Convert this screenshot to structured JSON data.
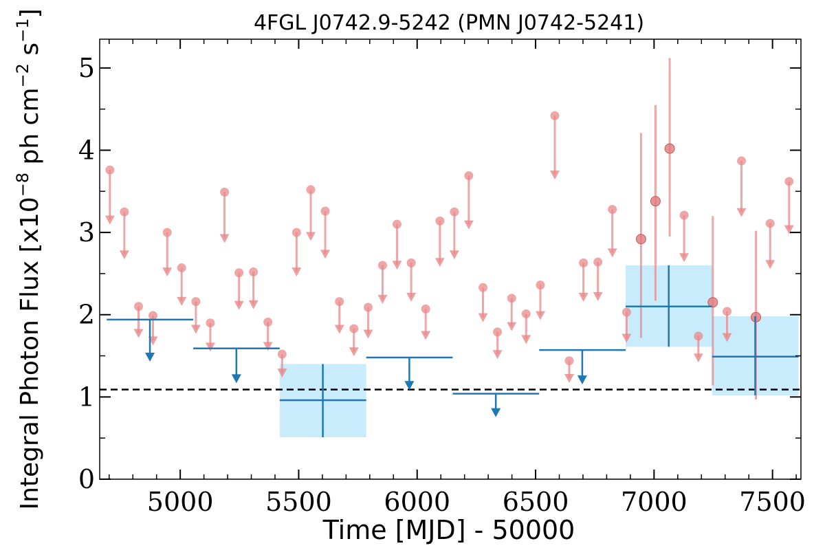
{
  "chart_data": {
    "type": "scatter",
    "title": "4FGL J0742.9-5242 (PMN J0742-5241)",
    "xlabel": "Time [MJD] - 50000",
    "ylabel_main": "Integral Photon Flux [x10",
    "ylabel_exp1": "−8",
    "ylabel_mid": " ph cm",
    "ylabel_exp2": "−2",
    "ylabel_s": " s",
    "ylabel_exp3": "−1",
    "ylabel_end": "]",
    "xlim": [
      4660,
      7620
    ],
    "ylim": [
      0,
      5.35
    ],
    "x_ticks": [
      "5000",
      "5500",
      "6000",
      "6500",
      "7000",
      "7500"
    ],
    "y_ticks": [
      "0",
      "1",
      "2",
      "3",
      "4",
      "5"
    ],
    "reference_line": {
      "y": 1.09,
      "style": "dashed",
      "color": "#000000"
    },
    "colors": {
      "fine": "#e8888a",
      "coarse": "#1f77b4",
      "coarse_band": "#c9ecfc"
    },
    "fine_bins": {
      "bin_width_days": 30,
      "upper_limits": [
        {
          "x": 4703,
          "y": 3.76
        },
        {
          "x": 4764,
          "y": 3.25
        },
        {
          "x": 4824,
          "y": 2.1
        },
        {
          "x": 4885,
          "y": 1.99
        },
        {
          "x": 4945,
          "y": 3.0
        },
        {
          "x": 5006,
          "y": 2.57
        },
        {
          "x": 5066,
          "y": 2.16
        },
        {
          "x": 5127,
          "y": 1.9
        },
        {
          "x": 5187,
          "y": 3.49
        },
        {
          "x": 5248,
          "y": 2.51
        },
        {
          "x": 5309,
          "y": 2.52
        },
        {
          "x": 5370,
          "y": 1.91
        },
        {
          "x": 5430,
          "y": 1.52
        },
        {
          "x": 5491,
          "y": 3.0
        },
        {
          "x": 5551,
          "y": 3.52
        },
        {
          "x": 5612,
          "y": 3.26
        },
        {
          "x": 5672,
          "y": 2.16
        },
        {
          "x": 5733,
          "y": 1.83
        },
        {
          "x": 5793,
          "y": 2.09
        },
        {
          "x": 5854,
          "y": 2.6
        },
        {
          "x": 5915,
          "y": 3.1
        },
        {
          "x": 5975,
          "y": 2.63
        },
        {
          "x": 6036,
          "y": 2.07
        },
        {
          "x": 6096,
          "y": 3.14
        },
        {
          "x": 6157,
          "y": 3.25
        },
        {
          "x": 6218,
          "y": 3.69
        },
        {
          "x": 6278,
          "y": 2.33
        },
        {
          "x": 6339,
          "y": 1.79
        },
        {
          "x": 6399,
          "y": 2.2
        },
        {
          "x": 6460,
          "y": 2.01
        },
        {
          "x": 6520,
          "y": 2.36
        },
        {
          "x": 6581,
          "y": 4.42
        },
        {
          "x": 6642,
          "y": 1.44
        },
        {
          "x": 6702,
          "y": 2.63
        },
        {
          "x": 6763,
          "y": 2.64
        },
        {
          "x": 6824,
          "y": 3.28
        },
        {
          "x": 6884,
          "y": 2.03
        },
        {
          "x": 7127,
          "y": 3.21
        },
        {
          "x": 7187,
          "y": 1.74
        },
        {
          "x": 7308,
          "y": 2.04
        },
        {
          "x": 7369,
          "y": 3.87
        },
        {
          "x": 7490,
          "y": 3.11
        },
        {
          "x": 7570,
          "y": 3.62
        }
      ],
      "detections": [
        {
          "x": 6945,
          "y": 2.92,
          "ylow": 1.72,
          "yhigh": 4.21
        },
        {
          "x": 7006,
          "y": 3.38,
          "ylow": 2.17,
          "yhigh": 4.55
        },
        {
          "x": 7066,
          "y": 4.02,
          "ylow": 2.95,
          "yhigh": 5.12
        },
        {
          "x": 7248,
          "y": 2.15,
          "ylow": 1.14,
          "yhigh": 3.2
        },
        {
          "x": 7430,
          "y": 1.97,
          "ylow": 0.97,
          "yhigh": 3.02
        }
      ]
    },
    "coarse_bins": {
      "upper_limits": [
        {
          "x0": 4690,
          "x1": 5055,
          "x": 4872,
          "y": 1.94
        },
        {
          "x0": 5055,
          "x1": 5420,
          "x": 5237,
          "y": 1.59
        },
        {
          "x0": 5785,
          "x1": 6150,
          "x": 5967,
          "y": 1.48
        },
        {
          "x0": 6150,
          "x1": 6515,
          "x": 6332,
          "y": 1.04
        },
        {
          "x0": 6515,
          "x1": 6880,
          "x": 6697,
          "y": 1.57
        }
      ],
      "detections": [
        {
          "x0": 5420,
          "x1": 5785,
          "x": 5602,
          "y": 0.96,
          "ylow": 0.51,
          "yhigh": 1.4
        },
        {
          "x0": 6880,
          "x1": 7245,
          "x": 7062,
          "y": 2.1,
          "ylow": 1.61,
          "yhigh": 2.6
        },
        {
          "x0": 7245,
          "x1": 7610,
          "x": 7427,
          "y": 1.49,
          "ylow": 1.02,
          "yhigh": 1.98
        }
      ]
    }
  }
}
